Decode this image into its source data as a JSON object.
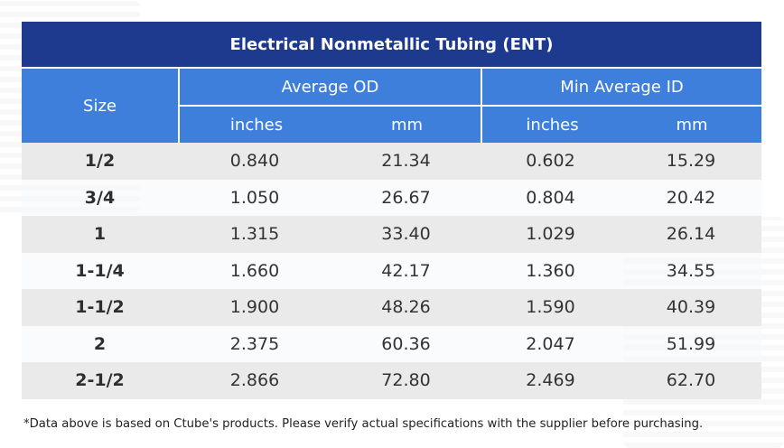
{
  "table": {
    "title": "Electrical Nonmetallic Tubing (ENT)",
    "size_header": "Size",
    "group_headers": [
      "Average OD",
      "Min Average ID"
    ],
    "unit_headers": [
      "inches",
      "mm",
      "inches",
      "mm"
    ],
    "rows": [
      {
        "size": "1/2",
        "od_in": "0.840",
        "od_mm": "21.34",
        "id_in": "0.602",
        "id_mm": "15.29"
      },
      {
        "size": "3/4",
        "od_in": "1.050",
        "od_mm": "26.67",
        "id_in": "0.804",
        "id_mm": "20.42"
      },
      {
        "size": "1",
        "od_in": "1.315",
        "od_mm": "33.40",
        "id_in": "1.029",
        "id_mm": "26.14"
      },
      {
        "size": "1-1/4",
        "od_in": "1.660",
        "od_mm": "42.17",
        "id_in": "1.360",
        "id_mm": "34.55"
      },
      {
        "size": "1-1/2",
        "od_in": "1.900",
        "od_mm": "48.26",
        "id_in": "1.590",
        "id_mm": "40.39"
      },
      {
        "size": "2",
        "od_in": "2.375",
        "od_mm": "60.36",
        "id_in": "2.047",
        "id_mm": "51.99"
      },
      {
        "size": "2-1/2",
        "od_in": "2.866",
        "od_mm": "72.80",
        "id_in": "2.469",
        "id_mm": "62.70"
      }
    ]
  },
  "footnote": "*Data above is based on Ctube's products. Please verify actual specifications with the supplier before purchasing.",
  "colors": {
    "title_bg": "#1e3a8e",
    "header_bg": "#3f7fdc",
    "row_alt_a": "#e8e8e8",
    "row_alt_b": "#f7f8fc"
  }
}
